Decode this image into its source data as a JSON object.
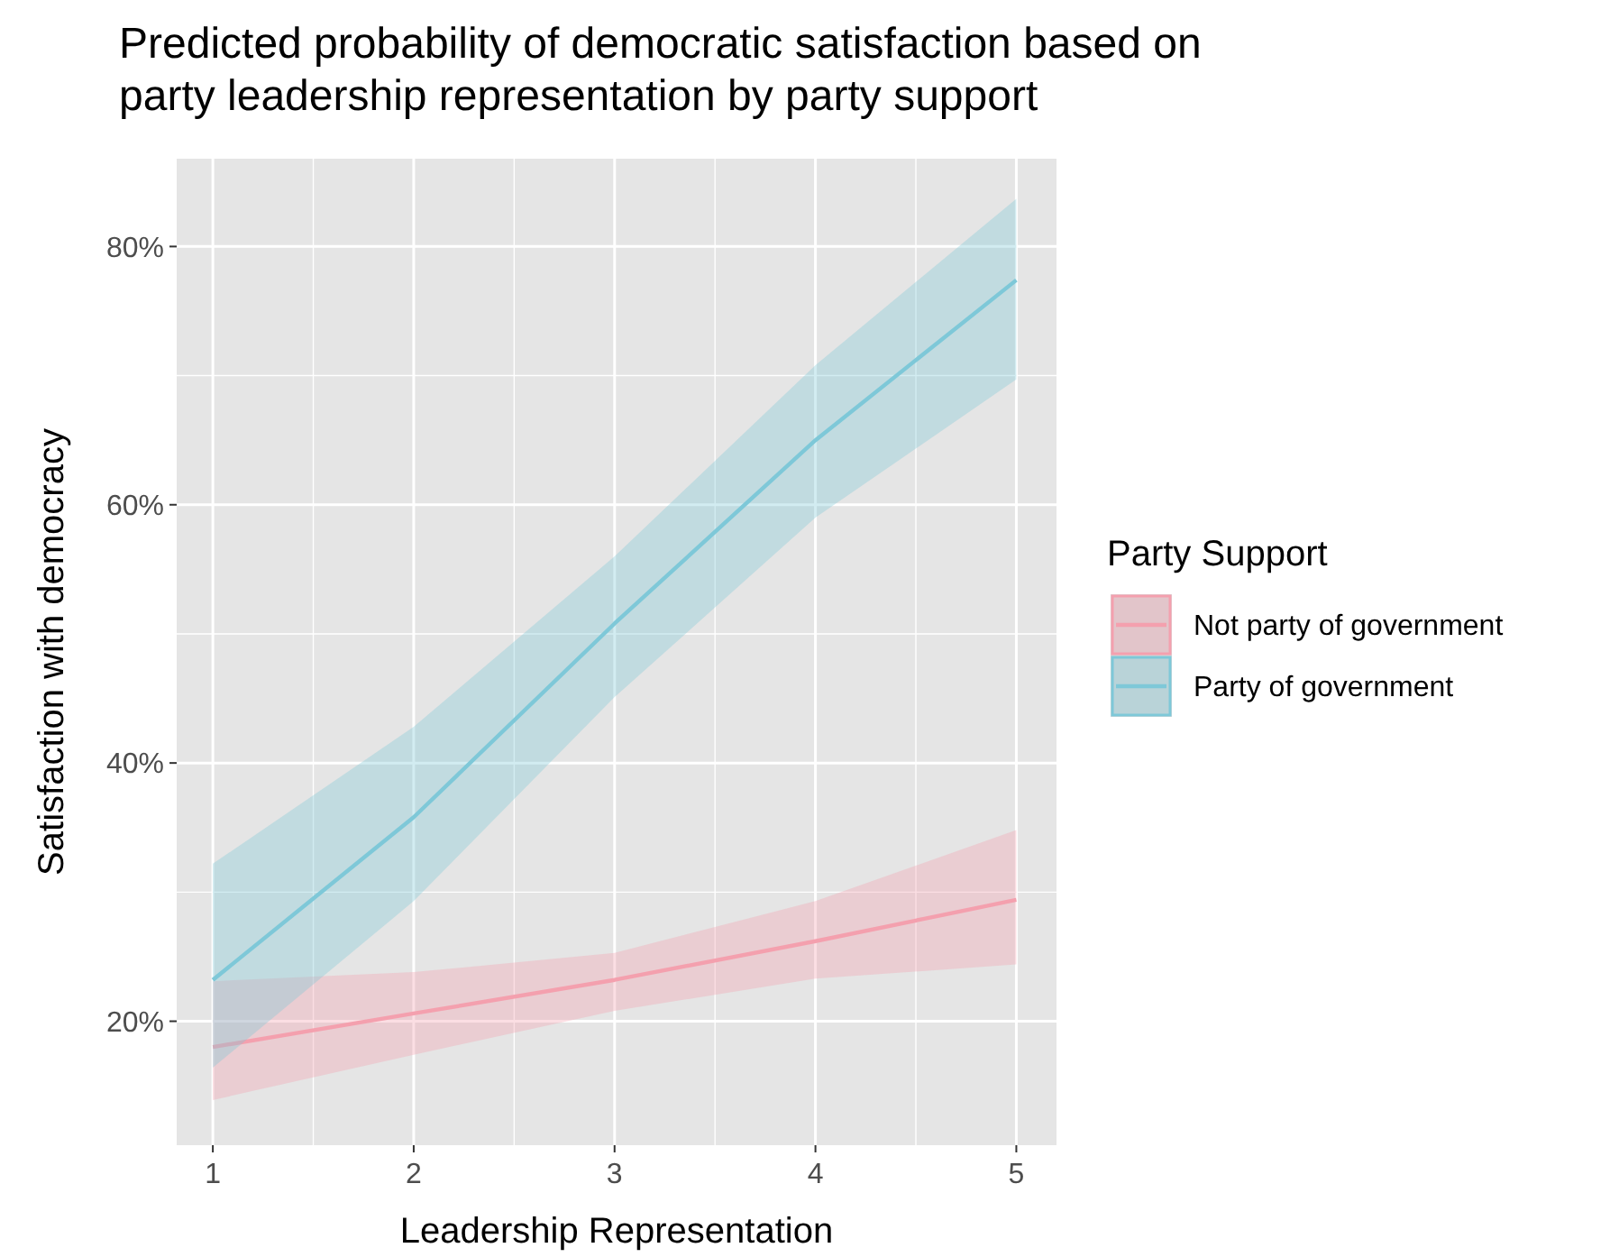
{
  "chart_data": {
    "type": "line",
    "title": "Predicted probability of democratic satisfaction based on party leadership representation by party support",
    "xlabel": "Leadership Representation",
    "ylabel": "Satisfaction with democracy",
    "legend_title": "Party Support",
    "legend": "right",
    "grid": true,
    "x": [
      1,
      2,
      3,
      4,
      5
    ],
    "xlim": [
      0.82,
      5.2
    ],
    "xticks": [
      1,
      2,
      3,
      4,
      5
    ],
    "ylim": [
      10.4,
      86.8
    ],
    "yticks": [
      {
        "value": 20,
        "label": "20%"
      },
      {
        "value": 40,
        "label": "40%"
      },
      {
        "value": 60,
        "label": "60%"
      },
      {
        "value": 80,
        "label": "80%"
      }
    ],
    "series": [
      {
        "name": "Not party of government",
        "color": "#f4a0ae",
        "values": [
          18.0,
          20.6,
          23.2,
          26.2,
          29.4
        ],
        "lower": [
          13.9,
          17.4,
          20.8,
          23.3,
          24.4
        ],
        "upper": [
          23.1,
          23.8,
          25.3,
          29.3,
          34.8
        ]
      },
      {
        "name": "Party of government",
        "color": "#7ec8d8",
        "values": [
          23.2,
          35.8,
          50.8,
          65.0,
          77.4
        ],
        "lower": [
          16.4,
          29.3,
          45.1,
          59.0,
          69.7
        ],
        "upper": [
          32.2,
          42.8,
          56.0,
          70.8,
          83.7
        ]
      }
    ]
  }
}
